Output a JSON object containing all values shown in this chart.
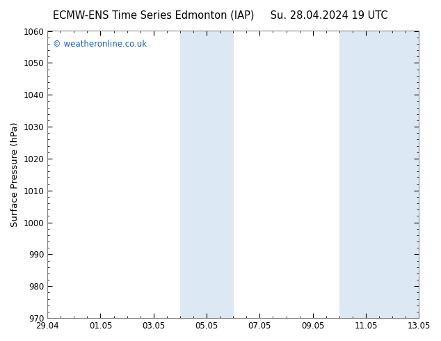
{
  "title_left": "ECMW-ENS Time Series Edmonton (IAP)",
  "title_right": "Su. 28.04.2024 19 UTC",
  "ylabel": "Surface Pressure (hPa)",
  "ylim": [
    970,
    1060
  ],
  "yticks": [
    970,
    980,
    990,
    1000,
    1010,
    1020,
    1030,
    1040,
    1050,
    1060
  ],
  "xtick_labels": [
    "29.04",
    "01.05",
    "03.05",
    "05.05",
    "07.05",
    "09.05",
    "11.05",
    "13.05"
  ],
  "xtick_positions": [
    0,
    2,
    4,
    6,
    8,
    10,
    12,
    14
  ],
  "x_min": 0,
  "x_max": 14,
  "watermark": "© weatheronline.co.uk",
  "watermark_color": "#1a5cb0",
  "background_color": "#ffffff",
  "plot_bg_color": "#ffffff",
  "shaded_bands": [
    {
      "x_start": 5.0,
      "x_end": 7.0
    },
    {
      "x_start": 11.0,
      "x_end": 14.0
    }
  ],
  "shade_color": "#dce9f5",
  "border_color": "#888888",
  "tick_color": "#000000",
  "title_fontsize": 10.5,
  "label_fontsize": 9.5,
  "tick_fontsize": 8.5,
  "watermark_fontsize": 8.5
}
